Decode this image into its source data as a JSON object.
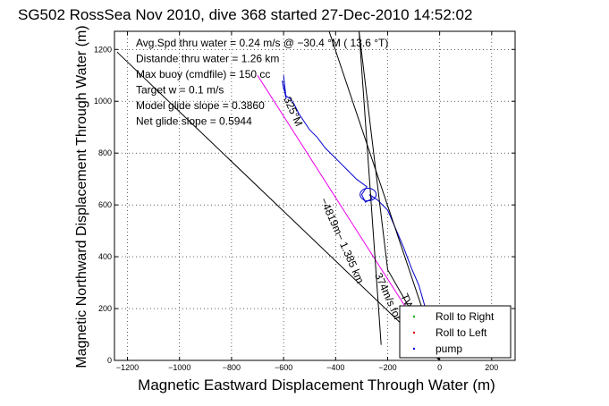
{
  "chart_data": {
    "type": "line",
    "title": "SG502 RossSea Nov 2010, dive 368 started 27-Dec-2010 14:52:02",
    "xlabel": "Magnetic Eastward Displacement Through Water (m)",
    "ylabel": "Magnetic Northward Displacement Through Water (m)",
    "xlim": [
      -1250,
      290
    ],
    "ylim": [
      0,
      1270
    ],
    "xticks": [
      -1200,
      -1000,
      -800,
      -600,
      -400,
      -200,
      0,
      200
    ],
    "yticks": [
      0,
      200,
      400,
      600,
      800,
      1000,
      1200
    ],
    "grid": true,
    "info_lines": [
      "Avg.Spd thru water =  0.24 m/s @ −30.4   °M ( 13.6 °T)",
      "Distande thru water =  1.26 km",
      "Max buoy (cmdfile) = 150 cc",
      "Target w = 0.1 m/s",
      "Model glide slope = 0.3860",
      "Net glide slope = 0.5944"
    ],
    "legend": {
      "position": "lower-right",
      "entries": [
        {
          "label": "Roll to Right",
          "color": "#00aa00",
          "marker": "dot"
        },
        {
          "label": "Roll to Left",
          "color": "#dd0000",
          "marker": "dot"
        },
        {
          "label": "pump",
          "color": "#0000cc",
          "marker": "dot"
        }
      ]
    },
    "annotations": [
      {
        "text": "325°M",
        "x": -600,
        "y": 1010,
        "angle": 66
      },
      {
        "text": "−4819m− 1.385 km",
        "x": -460,
        "y": 620,
        "angle": 66
      },
      {
        "text": "374m/s for",
        "x": -250,
        "y": 330,
        "angle": 66
      },
      {
        "text": "TW",
        "x": -150,
        "y": 250,
        "angle": 66
      }
    ],
    "series": [
      {
        "color": "#0000cc",
        "x": [
          0,
          -20,
          -40,
          -60,
          -80,
          -110,
          -140,
          -170,
          -200,
          -240,
          -270,
          -260,
          -285,
          -300,
          -280,
          -320,
          -360,
          -400,
          -440,
          -470,
          -500,
          -520,
          -540,
          -560,
          -575,
          -590,
          -600,
          -605,
          -590,
          -600
        ],
        "y": [
          0,
          80,
          150,
          220,
          290,
          360,
          440,
          510,
          580,
          620,
          640,
          625,
          610,
          640,
          670,
          700,
          740,
          780,
          820,
          860,
          890,
          920,
          950,
          990,
          1010,
          1020,
          1050,
          1080,
          1010,
          1100
        ]
      },
      {
        "color": "#ee00ee",
        "x": [
          0,
          -700
        ],
        "y": [
          0,
          1100
        ]
      },
      {
        "color": "#000000",
        "x": [
          0,
          -425
        ],
        "y": [
          0,
          1270
        ]
      },
      {
        "color": "#000000",
        "x": [
          0,
          -1240
        ],
        "y": [
          0,
          1190
        ]
      },
      {
        "color": "#000000",
        "x": [
          0,
          -200,
          -310,
          -225
        ],
        "y": [
          0,
          350,
          1270,
          60
        ]
      }
    ]
  }
}
